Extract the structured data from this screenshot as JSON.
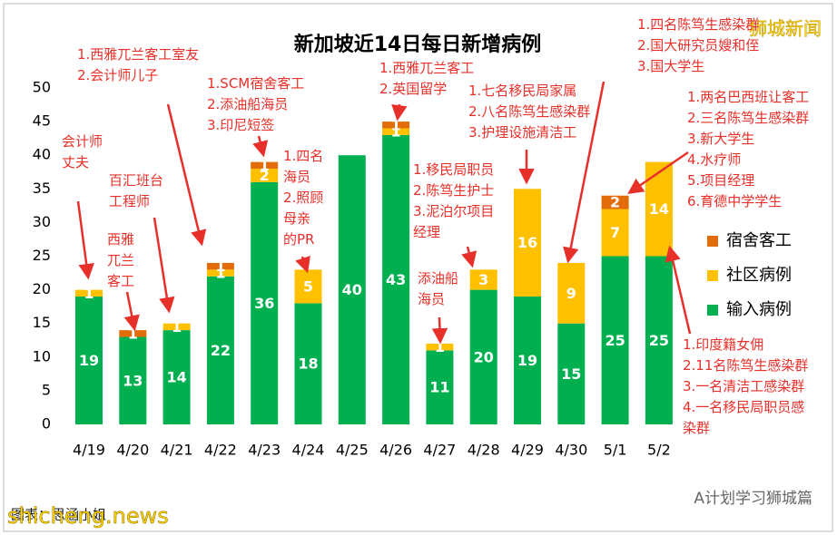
{
  "chart_data": {
    "type": "bar",
    "stacked": true,
    "title": "新加坡近14日每日新增病例",
    "categories": [
      "4/19",
      "4/20",
      "4/21",
      "4/22",
      "4/23",
      "4/24",
      "4/25",
      "4/26",
      "4/27",
      "4/28",
      "4/29",
      "4/30",
      "5/1",
      "5/2"
    ],
    "series": [
      {
        "name": "输入病例",
        "color": "#00b050",
        "values": [
          19,
          13,
          14,
          22,
          36,
          18,
          40,
          43,
          11,
          20,
          19,
          15,
          25,
          25
        ]
      },
      {
        "name": "社区病例",
        "color": "#ffc000",
        "values": [
          1,
          null,
          1,
          1,
          2,
          5,
          null,
          1,
          1,
          3,
          16,
          9,
          7,
          14
        ]
      },
      {
        "name": "宿舍客工",
        "color": "#e36c0a",
        "values": [
          null,
          1,
          null,
          1,
          1,
          null,
          null,
          1,
          null,
          null,
          null,
          null,
          2,
          null
        ]
      }
    ],
    "ylim": [
      0,
      50
    ],
    "yticks": [
      0,
      5,
      10,
      15,
      20,
      25,
      30,
      35,
      40,
      45,
      50
    ],
    "grid": false,
    "legend": "right",
    "annotations": [
      [
        "会计师",
        "丈夫"
      ],
      [
        "1.西雅兀兰客工室友",
        "2.会计师儿子"
      ],
      [
        "西雅",
        "兀兰",
        "客工"
      ],
      [
        "百汇班台",
        "工程师"
      ],
      [
        "1.SCM宿舍客工",
        "2.添油船海员",
        "3.印尼短签"
      ],
      [
        "1.四名",
        "海员",
        "2.照顾",
        "母亲",
        "的PR"
      ],
      [
        "1.西雅兀兰客工",
        "2.英国留学"
      ],
      [
        "1.移民局职员",
        "2.陈笃生护士",
        "3.泥泊尔项目",
        "经理"
      ],
      [
        "添油船",
        "海员"
      ],
      [
        "1.七名移民局家属",
        "2.八名陈笃生感染群",
        "3.护理设施清洁工"
      ],
      [
        "1.四名陈笃生感染群",
        "2.国大研究员嫂和侄",
        "3.国大学生"
      ],
      [
        "1.两名巴西班让客工",
        "2.三名陈笃生感染群",
        "3.新大学生",
        "4.水疗师",
        "5.项目经理",
        "6.育德中学学生"
      ],
      [
        "1.印度籍女佣",
        "2.11名陈笃生感染群",
        "3.一名清洁工感染群",
        "4.一名移民局职员感",
        "染群"
      ]
    ]
  },
  "watermarks": {
    "brand": "狮城新闻",
    "site": "shicheng.news",
    "credit": "图表：思涵小姐",
    "wechat": "A计划学习狮城篇"
  }
}
